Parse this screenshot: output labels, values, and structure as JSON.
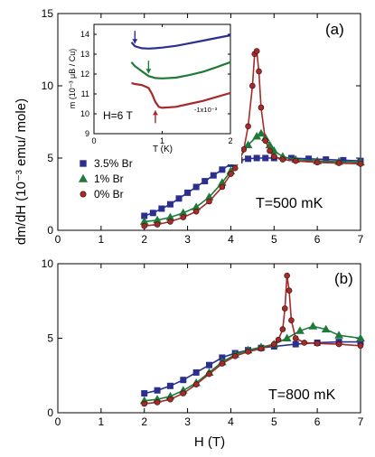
{
  "chart_data": [
    {
      "panel": "(a)",
      "type": "line",
      "annotation": "T=500 mK",
      "ylabel": "dm/dH (10⁻³ emu/ mole)",
      "xlim": [
        0,
        7
      ],
      "ylim": [
        0,
        15
      ],
      "xticks": [
        "0",
        "1",
        "2",
        "3",
        "4",
        "5",
        "6",
        "7"
      ],
      "yticks": [
        "0",
        "5",
        "10",
        "15"
      ],
      "legend": {
        "placement": "middle-left",
        "entries": [
          "3.5% Br",
          "1% Br",
          "0% Br"
        ]
      },
      "series": [
        {
          "name": "3.5% Br",
          "marker": "square",
          "color": "#2b2f8f",
          "x": [
            2.0,
            2.2,
            2.4,
            2.6,
            2.8,
            3.0,
            3.2,
            3.4,
            3.6,
            3.8,
            4.0,
            4.2,
            4.4,
            4.6,
            4.8,
            5.0,
            5.4,
            5.8,
            6.2,
            6.6,
            7.0
          ],
          "y": [
            1.0,
            1.2,
            1.5,
            1.8,
            2.2,
            2.6,
            3.0,
            3.4,
            3.8,
            4.2,
            4.6,
            4.85,
            4.95,
            5.0,
            5.0,
            5.0,
            5.0,
            4.95,
            4.9,
            4.85,
            4.8
          ]
        },
        {
          "name": "1% Br",
          "marker": "triangle",
          "color": "#1f7a3a",
          "x": [
            2.0,
            2.3,
            2.6,
            2.9,
            3.2,
            3.5,
            3.8,
            4.0,
            4.2,
            4.4,
            4.6,
            4.7,
            4.8,
            4.9,
            5.0,
            5.2,
            5.5,
            6.0,
            6.5,
            7.0
          ],
          "y": [
            0.6,
            0.7,
            0.9,
            1.2,
            1.6,
            2.3,
            3.3,
            4.1,
            5.0,
            5.9,
            6.5,
            6.7,
            6.4,
            5.9,
            5.5,
            5.1,
            4.9,
            4.8,
            4.75,
            4.7
          ]
        },
        {
          "name": "0% Br",
          "marker": "circle",
          "color": "#a52a2a",
          "x": [
            2.0,
            2.3,
            2.6,
            2.9,
            3.2,
            3.5,
            3.8,
            4.0,
            4.1,
            4.2,
            4.3,
            4.4,
            4.5,
            4.55,
            4.6,
            4.65,
            4.7,
            4.8,
            4.9,
            5.0,
            5.2,
            5.5,
            6.0,
            6.5,
            7.0
          ],
          "y": [
            0.3,
            0.4,
            0.6,
            0.9,
            1.3,
            2.0,
            3.0,
            3.9,
            4.3,
            4.8,
            5.6,
            7.2,
            10.0,
            12.2,
            12.4,
            11.0,
            8.5,
            6.2,
            5.5,
            5.1,
            4.9,
            4.8,
            4.7,
            4.65,
            4.6
          ]
        }
      ]
    },
    {
      "panel": "inset",
      "type": "line",
      "annotation": "H=6 T",
      "xlabel": "T (K)",
      "ylabel": "m (10⁻³ μB / Cu)",
      "xlim": [
        0,
        2
      ],
      "ylim": [
        9,
        14.5
      ],
      "xticks": [
        "0",
        "1",
        "2"
      ],
      "yticks": [
        "9",
        "10",
        "11",
        "12",
        "13",
        "14"
      ],
      "offset_label": "-1x10⁻³",
      "series": [
        {
          "name": "3.5% Br",
          "color": "#2b2f8f",
          "x": [
            0.55,
            0.6,
            0.7,
            0.8,
            0.9,
            1.0,
            1.2,
            1.4,
            1.6,
            1.8,
            2.0
          ],
          "y": [
            13.6,
            13.4,
            13.3,
            13.28,
            13.3,
            13.33,
            13.42,
            13.55,
            13.68,
            13.82,
            13.95
          ]
        },
        {
          "name": "1% Br",
          "color": "#1f7a3a",
          "x": [
            0.55,
            0.6,
            0.7,
            0.8,
            0.9,
            1.0,
            1.2,
            1.4,
            1.6,
            1.8,
            2.0
          ],
          "y": [
            12.6,
            12.4,
            12.15,
            11.9,
            11.8,
            11.78,
            11.82,
            11.95,
            12.12,
            12.35,
            12.6
          ]
        },
        {
          "name": "0% Br",
          "color": "#a52a2a",
          "x": [
            0.55,
            0.6,
            0.7,
            0.8,
            0.85,
            0.9,
            0.95,
            1.0,
            1.2,
            1.4,
            1.6,
            1.8,
            2.0
          ],
          "y": [
            11.55,
            11.5,
            11.45,
            11.3,
            11.0,
            10.6,
            10.35,
            10.3,
            10.35,
            10.5,
            10.65,
            10.85,
            11.05
          ]
        }
      ],
      "arrows": [
        {
          "series": "3.5% Br",
          "x": 0.6,
          "y": 13.4,
          "direction": "down"
        },
        {
          "series": "1% Br",
          "x": 0.8,
          "y": 11.9,
          "direction": "down"
        },
        {
          "series": "0% Br",
          "x": 0.9,
          "y": 10.3,
          "direction": "up"
        }
      ]
    },
    {
      "panel": "(b)",
      "type": "line",
      "annotation": "T=800 mK",
      "xlabel": "H (T)",
      "xlim": [
        0,
        7
      ],
      "ylim": [
        0,
        10
      ],
      "xticks": [
        "0",
        "1",
        "2",
        "3",
        "4",
        "5",
        "6",
        "7"
      ],
      "yticks": [
        "0",
        "5",
        "10"
      ],
      "series": [
        {
          "name": "3.5% Br",
          "marker": "square",
          "color": "#2b2f8f",
          "x": [
            2.0,
            2.3,
            2.6,
            2.9,
            3.2,
            3.5,
            3.8,
            4.1,
            4.4,
            4.7,
            5.0,
            5.5,
            6.0,
            6.5,
            7.0
          ],
          "y": [
            1.3,
            1.5,
            1.8,
            2.2,
            2.7,
            3.2,
            3.7,
            4.0,
            4.2,
            4.35,
            4.45,
            4.6,
            4.7,
            4.75,
            4.75
          ]
        },
        {
          "name": "1% Br",
          "marker": "triangle",
          "color": "#1f7a3a",
          "x": [
            2.0,
            2.3,
            2.6,
            2.9,
            3.2,
            3.5,
            3.8,
            4.1,
            4.4,
            4.7,
            5.0,
            5.3,
            5.6,
            5.9,
            6.2,
            6.5,
            7.0
          ],
          "y": [
            0.8,
            0.9,
            1.1,
            1.5,
            2.0,
            2.7,
            3.4,
            3.9,
            4.2,
            4.4,
            4.6,
            5.0,
            5.5,
            5.8,
            5.6,
            5.2,
            5.0
          ]
        },
        {
          "name": "0% Br",
          "marker": "circle",
          "color": "#a52a2a",
          "x": [
            2.0,
            2.3,
            2.6,
            2.9,
            3.2,
            3.5,
            3.8,
            4.1,
            4.4,
            4.7,
            5.0,
            5.1,
            5.2,
            5.25,
            5.3,
            5.35,
            5.4,
            5.5,
            5.7,
            6.0,
            6.5,
            7.0
          ],
          "y": [
            0.6,
            0.7,
            0.9,
            1.3,
            1.9,
            2.6,
            3.3,
            3.8,
            4.1,
            4.3,
            4.6,
            4.9,
            5.6,
            7.0,
            9.2,
            8.2,
            6.2,
            5.0,
            4.7,
            4.65,
            4.6,
            4.5
          ]
        }
      ]
    }
  ]
}
